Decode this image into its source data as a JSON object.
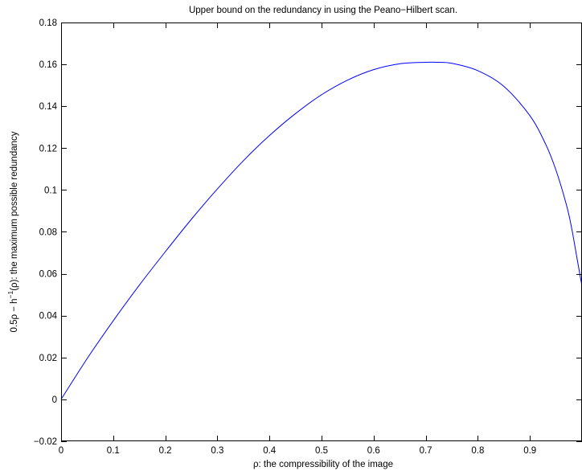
{
  "chart_data": {
    "type": "line",
    "title": "Upper bound on the redundancy in using the Peano−Hilbert scan.",
    "xlabel": "ρ: the compressibility of the image",
    "ylabel_parts": {
      "prefix": "0.5ρ − h",
      "sup": "−1",
      "suffix": "(ρ): the maximum possible redundancy"
    },
    "xlim": [
      0,
      1
    ],
    "ylim": [
      -0.02,
      0.18
    ],
    "xticks": [
      {
        "value": 0,
        "label": "0"
      },
      {
        "value": 0.1,
        "label": "0.1"
      },
      {
        "value": 0.2,
        "label": "0.2"
      },
      {
        "value": 0.3,
        "label": "0.3"
      },
      {
        "value": 0.4,
        "label": "0.4"
      },
      {
        "value": 0.5,
        "label": "0.5"
      },
      {
        "value": 0.6,
        "label": "0.6"
      },
      {
        "value": 0.7,
        "label": "0.7"
      },
      {
        "value": 0.8,
        "label": "0.8"
      },
      {
        "value": 0.9,
        "label": "0.9"
      }
    ],
    "yticks": [
      {
        "value": -0.02,
        "label": "−0.02"
      },
      {
        "value": 0,
        "label": "0"
      },
      {
        "value": 0.02,
        "label": "0.02"
      },
      {
        "value": 0.04,
        "label": "0.04"
      },
      {
        "value": 0.06,
        "label": "0.06"
      },
      {
        "value": 0.08,
        "label": "0.08"
      },
      {
        "value": 0.1,
        "label": "0.1"
      },
      {
        "value": 0.12,
        "label": "0.12"
      },
      {
        "value": 0.14,
        "label": "0.14"
      },
      {
        "value": 0.16,
        "label": "0.16"
      },
      {
        "value": 0.18,
        "label": "0.18"
      }
    ],
    "grid": false,
    "line_color": "#0000ff",
    "series": [
      {
        "x": [
          0,
          0.05,
          0.1,
          0.15,
          0.2,
          0.25,
          0.3,
          0.35,
          0.4,
          0.45,
          0.5,
          0.55,
          0.6,
          0.65,
          0.7,
          0.72,
          0.75,
          0.8,
          0.85,
          0.9,
          0.93,
          0.95,
          0.97,
          0.98,
          0.99,
          1.0
        ],
        "y": [
          0,
          0.0195,
          0.0375,
          0.0545,
          0.0705,
          0.086,
          0.1005,
          0.114,
          0.126,
          0.1365,
          0.1455,
          0.1525,
          0.1575,
          0.1603,
          0.161,
          0.161,
          0.1605,
          0.157,
          0.1495,
          0.1355,
          0.122,
          0.1095,
          0.093,
          0.082,
          0.068,
          0.054
        ]
      }
    ]
  }
}
